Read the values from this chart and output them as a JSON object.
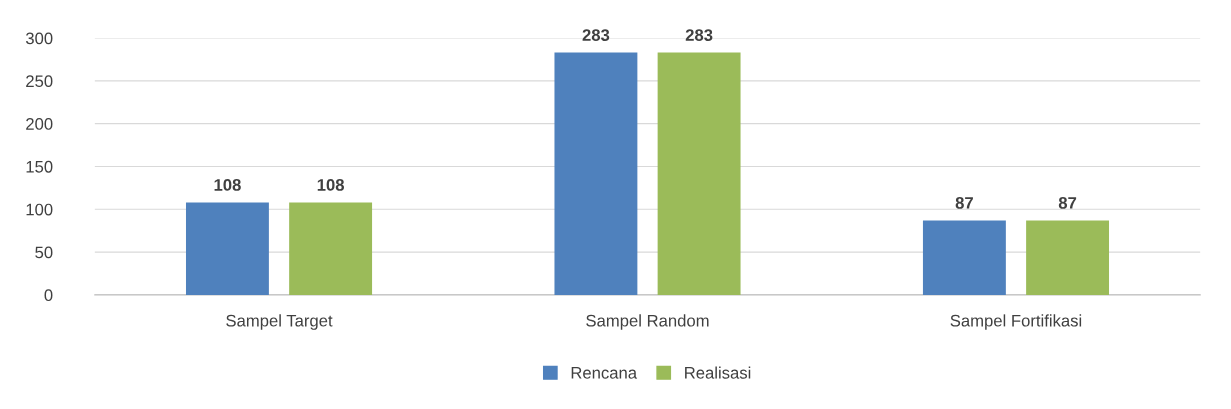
{
  "chart_data": {
    "type": "bar",
    "categories": [
      "Sampel Target",
      "Sampel Random",
      "Sampel Fortifikasi"
    ],
    "series": [
      {
        "name": "Rencana",
        "color": "#4f81bd",
        "values": [
          108,
          283,
          87
        ]
      },
      {
        "name": "Realisasi",
        "color": "#9bbb59",
        "values": [
          108,
          283,
          87
        ]
      }
    ],
    "ylim": [
      0,
      300
    ],
    "yticks": [
      0,
      50,
      100,
      150,
      200,
      250,
      300
    ],
    "grid": "y",
    "legend": "bottom",
    "data_labels": true
  }
}
